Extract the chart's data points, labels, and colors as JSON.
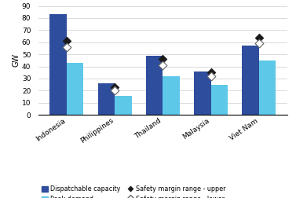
{
  "categories": [
    "Indonesia",
    "Philippines",
    "Thailand",
    "Malaysia",
    "Viet Nam"
  ],
  "dispatchable_capacity": [
    83,
    26,
    49,
    36,
    57
  ],
  "peak_demand": [
    43,
    16,
    32,
    25,
    45
  ],
  "safety_upper": [
    61,
    23,
    46,
    35,
    64
  ],
  "safety_lower": [
    56,
    20,
    41,
    32,
    59
  ],
  "bar_color_dispatch": "#2e4d9c",
  "bar_color_peak": "#5ec8e8",
  "marker_upper_color": "#1a1a1a",
  "ylabel": "GW",
  "ylim": [
    0,
    90
  ],
  "yticks": [
    0,
    10,
    20,
    30,
    40,
    50,
    60,
    70,
    80,
    90
  ],
  "legend_dispatch": "Dispatchable capacity",
  "legend_peak": "Peak demand",
  "legend_upper": "Safety margin range - upper",
  "legend_lower": "Safety margin range - lower",
  "bar_width": 0.35
}
